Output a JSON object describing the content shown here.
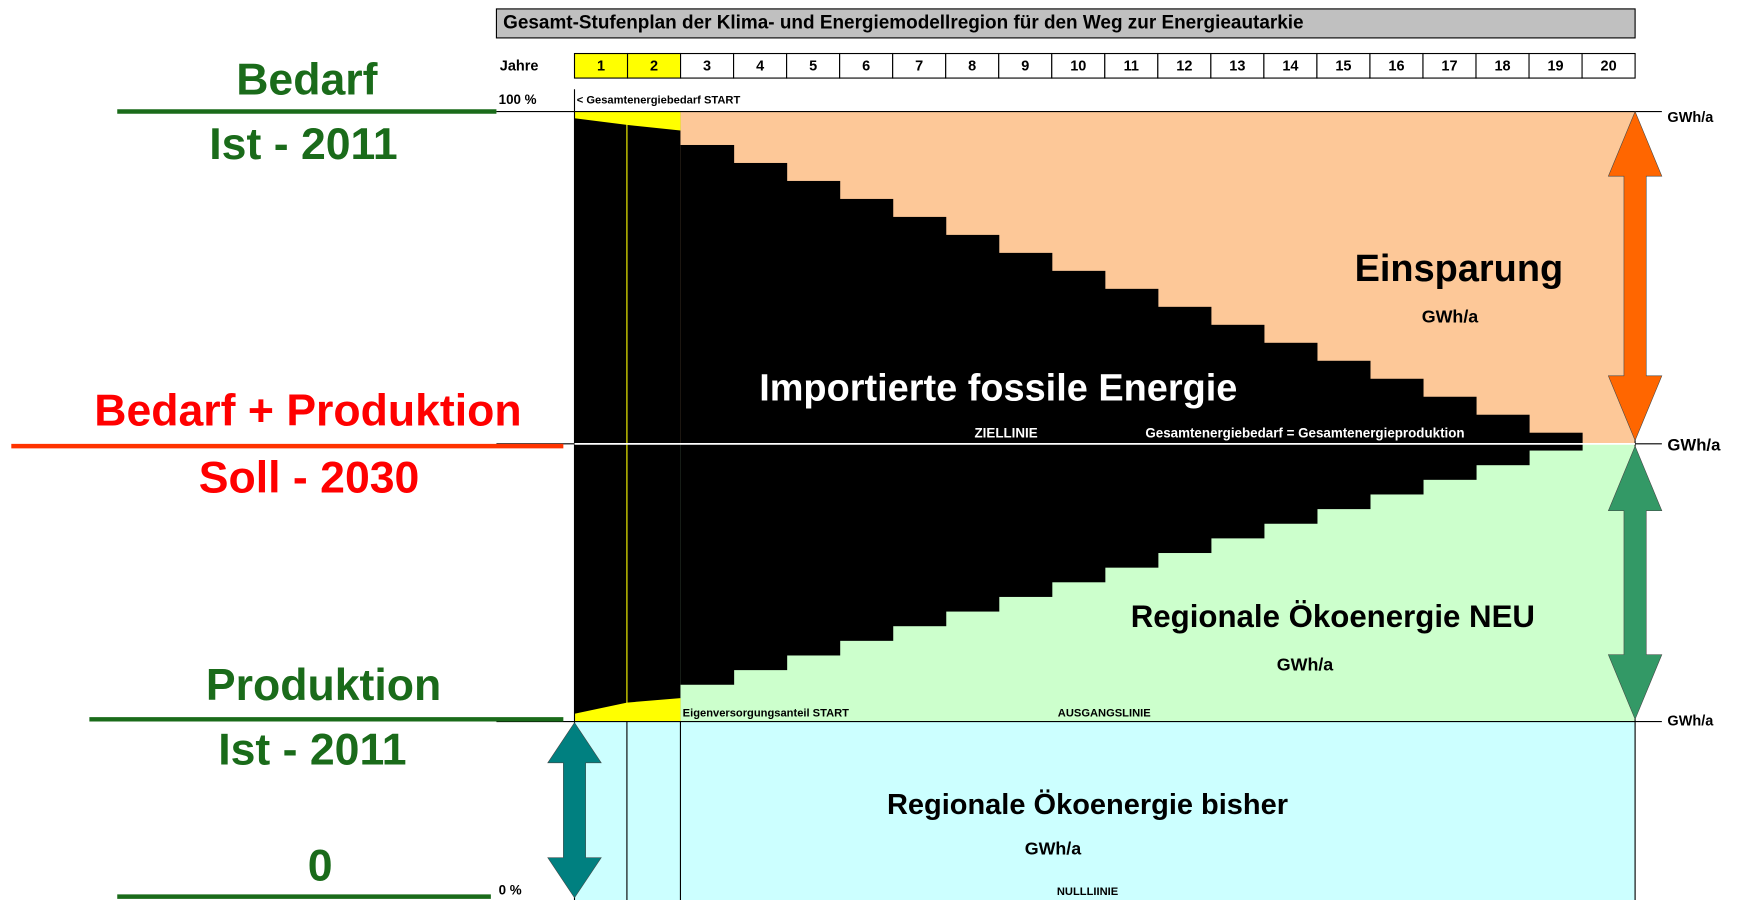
{
  "header": {
    "title": "Gesamt-Stufenplan der Klima- und Energiemodellregion für den Weg zur Energieautarkie"
  },
  "years": {
    "label": "Jahre",
    "values": [
      1,
      2,
      3,
      4,
      5,
      6,
      7,
      8,
      9,
      10,
      11,
      12,
      13,
      14,
      15,
      16,
      17,
      18,
      19,
      20
    ]
  },
  "scale": {
    "top": "100 %",
    "bottom": "0 %",
    "unit_top": "GWh/a",
    "unit_middle": "GWh/a",
    "unit_bottom": "GWh/a"
  },
  "left": {
    "demand": "Bedarf",
    "demand_year": "Ist  -  2011",
    "target": "Bedarf + Produktion",
    "target_year": "Soll  -  2030",
    "production": "Produktion",
    "production_year": "Ist  -  2011",
    "zero": "0"
  },
  "regions": {
    "start_demand": "< Gesamtenergiebedarf   START",
    "savings": "Einsparung",
    "savings_unit": "GWh/a",
    "fossil": "Importierte fossile Energie",
    "target_line": "ZIELLINIE",
    "target_equation": "Gesamtenergiebedarf   =  Gesamtenergieproduktion",
    "new_eco": "Regionale Ökoenergie NEU",
    "new_eco_unit": "GWh/a",
    "self_supply_start": "Eigenversorgungsanteil   START",
    "baseline": "AUSGANGSLINIE",
    "old_eco": "Regionale Ökoenergie bisher",
    "old_eco_unit": "GWh/a",
    "zero_line": "NULLLIINIE"
  }
}
